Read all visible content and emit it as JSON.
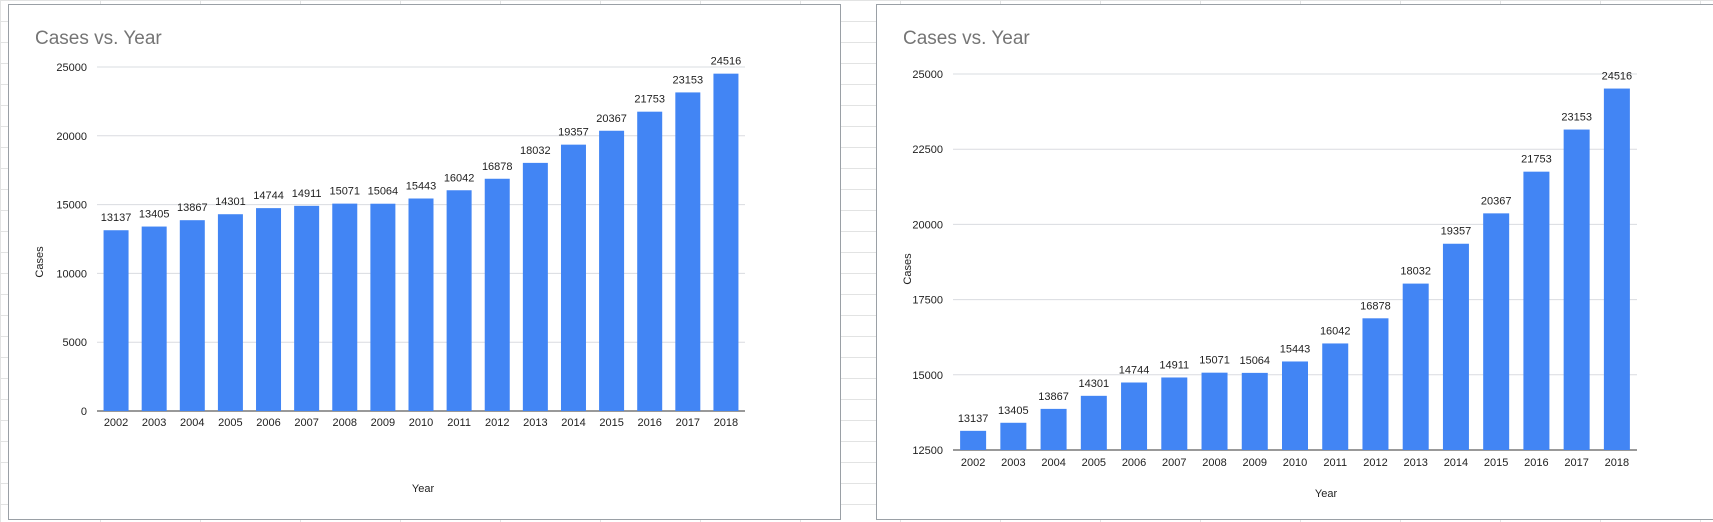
{
  "colors": {
    "bar": "#4285f4",
    "title": "#757575",
    "text": "#222222",
    "grid": "#dadce0"
  },
  "chart_data": [
    {
      "type": "bar",
      "title": "Cases vs. Year",
      "xlabel": "Year",
      "ylabel": "Cases",
      "ylim": [
        0,
        25000
      ],
      "yticks": [
        0,
        5000,
        10000,
        15000,
        20000,
        25000
      ],
      "grid": true,
      "legend": "none",
      "categories": [
        "2002",
        "2003",
        "2004",
        "2005",
        "2006",
        "2007",
        "2008",
        "2009",
        "2010",
        "2011",
        "2012",
        "2013",
        "2014",
        "2015",
        "2016",
        "2017",
        "2018"
      ],
      "values": [
        13137,
        13405,
        13867,
        14301,
        14744,
        14911,
        15071,
        15064,
        15443,
        16042,
        16878,
        18032,
        19357,
        20367,
        21753,
        23153,
        24516
      ]
    },
    {
      "type": "bar",
      "title": "Cases vs. Year",
      "xlabel": "Year",
      "ylabel": "Cases",
      "ylim": [
        12500,
        25000
      ],
      "yticks": [
        12500,
        15000,
        17500,
        20000,
        22500,
        25000
      ],
      "grid": true,
      "legend": "none",
      "categories": [
        "2002",
        "2003",
        "2004",
        "2005",
        "2006",
        "2007",
        "2008",
        "2009",
        "2010",
        "2011",
        "2012",
        "2013",
        "2014",
        "2015",
        "2016",
        "2017",
        "2018"
      ],
      "values": [
        13137,
        13405,
        13867,
        14301,
        14744,
        14911,
        15071,
        15064,
        15443,
        16042,
        16878,
        18032,
        19357,
        20367,
        21753,
        23153,
        24516
      ]
    }
  ]
}
